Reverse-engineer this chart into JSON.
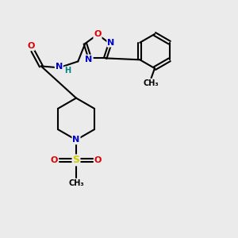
{
  "bg_color": "#ebebeb",
  "atom_colors": {
    "C": "#000000",
    "N": "#0000cc",
    "O": "#dd0000",
    "S": "#cccc00",
    "H": "#008080"
  },
  "bond_color": "#000000",
  "bond_width": 1.5,
  "figsize": [
    3.0,
    3.0
  ],
  "dpi": 100
}
